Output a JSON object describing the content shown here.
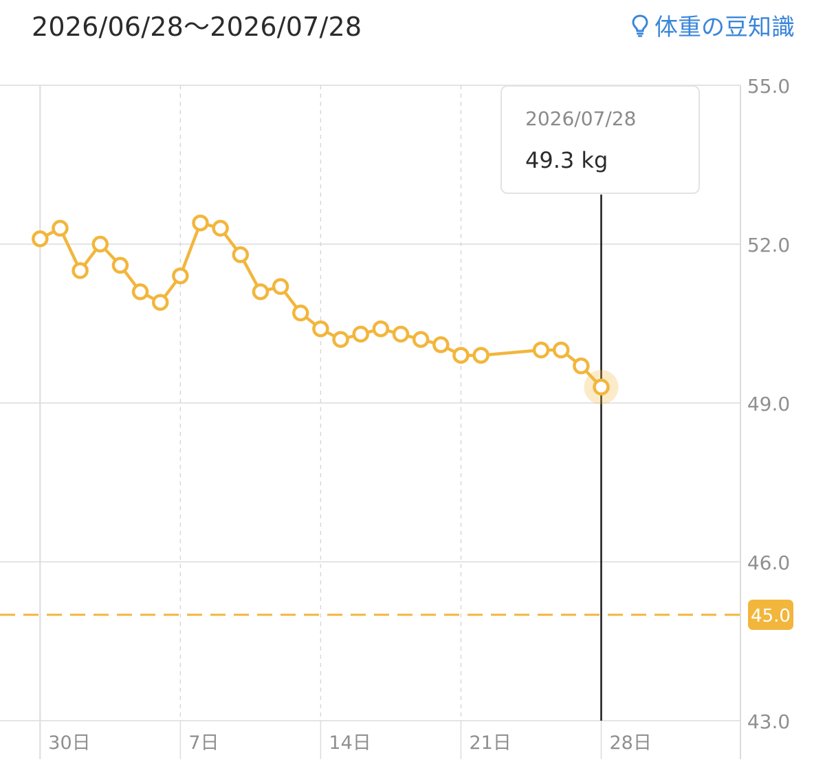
{
  "header": {
    "date_range": "2026/06/28〜2026/07/28",
    "tips_label": "体重の豆知識",
    "tips_icon": "lightbulb-icon"
  },
  "tooltip": {
    "date": "2026/07/28",
    "value": "49.3",
    "unit": "kg"
  },
  "colors": {
    "series": "#f2b63c",
    "target_badge": "#f2b63c",
    "link": "#3a86d8",
    "grid": "#d9d9d9"
  },
  "chart_data": {
    "type": "line",
    "x_range": [
      "2026-06-29",
      "2026-07-31"
    ],
    "ylim": [
      43.0,
      55.0
    ],
    "y_ticks": [
      "55.0",
      "52.0",
      "49.0",
      "46.0",
      "43.0"
    ],
    "x_ticks": [
      {
        "date": "2026-06-30",
        "label": "30日"
      },
      {
        "date": "2026-07-07",
        "label": "7日"
      },
      {
        "date": "2026-07-14",
        "label": "14日"
      },
      {
        "date": "2026-07-21",
        "label": "21日"
      },
      {
        "date": "2026-07-28",
        "label": "28日"
      }
    ],
    "target_line": {
      "value": 45.0,
      "label": "45.0"
    },
    "selected_date": "2026-07-28",
    "series": [
      {
        "points": [
          {
            "x": "2026-06-30",
            "y": 52.1
          },
          {
            "x": "2026-07-01",
            "y": 52.3
          },
          {
            "x": "2026-07-02",
            "y": 51.5
          },
          {
            "x": "2026-07-03",
            "y": 52.0
          },
          {
            "x": "2026-07-04",
            "y": 51.6
          },
          {
            "x": "2026-07-05",
            "y": 51.1
          },
          {
            "x": "2026-07-06",
            "y": 50.9
          },
          {
            "x": "2026-07-07",
            "y": 51.4
          },
          {
            "x": "2026-07-08",
            "y": 52.4
          },
          {
            "x": "2026-07-09",
            "y": 52.3
          },
          {
            "x": "2026-07-10",
            "y": 51.8
          },
          {
            "x": "2026-07-11",
            "y": 51.1
          },
          {
            "x": "2026-07-12",
            "y": 51.2
          },
          {
            "x": "2026-07-13",
            "y": 50.7
          },
          {
            "x": "2026-07-14",
            "y": 50.4
          },
          {
            "x": "2026-07-15",
            "y": 50.2
          },
          {
            "x": "2026-07-16",
            "y": 50.3
          },
          {
            "x": "2026-07-17",
            "y": 50.4
          },
          {
            "x": "2026-07-18",
            "y": 50.3
          },
          {
            "x": "2026-07-19",
            "y": 50.2
          },
          {
            "x": "2026-07-20",
            "y": 50.1
          },
          {
            "x": "2026-07-21",
            "y": 49.9
          },
          {
            "x": "2026-07-22",
            "y": 49.9
          },
          {
            "x": "2026-07-25",
            "y": 50.0
          },
          {
            "x": "2026-07-26",
            "y": 50.0
          },
          {
            "x": "2026-07-27",
            "y": 49.7
          },
          {
            "x": "2026-07-28",
            "y": 49.3
          }
        ]
      }
    ]
  }
}
